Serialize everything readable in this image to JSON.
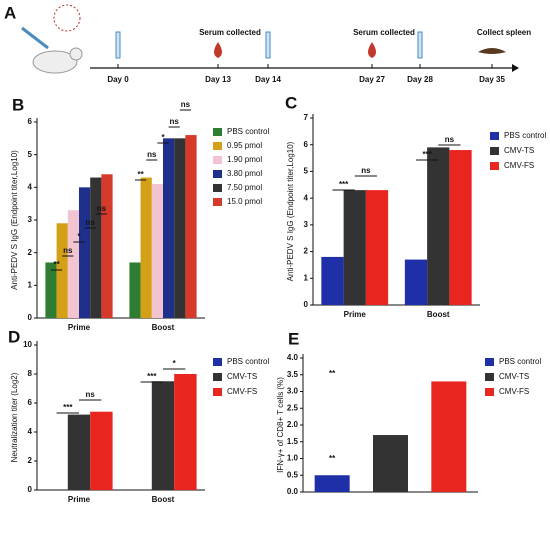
{
  "timeline": {
    "label": "A",
    "events": [
      {
        "day": "Day 0"
      },
      {
        "day": "Day 13",
        "note": "Serum collected"
      },
      {
        "day": "Day 14"
      },
      {
        "day": "Day 27",
        "note": "Serum collected"
      },
      {
        "day": "Day 28"
      },
      {
        "day": "Day 35",
        "note": "Collect spleen"
      }
    ]
  },
  "chart_data": [
    {
      "type": "bar",
      "label": "B",
      "ylabel": "Anti-PEDV S IgG (Endpoint titer,Log10)",
      "categories": [
        "Prime",
        "Boost"
      ],
      "series": [
        {
          "name": "PBS control",
          "color": "#2e7d32",
          "values": [
            1.7,
            1.7
          ]
        },
        {
          "name": "0.95 pmol",
          "color": "#d4a017",
          "values": [
            2.9,
            4.3
          ]
        },
        {
          "name": "1.90 pmol",
          "color": "#f2c4d0",
          "values": [
            3.3,
            4.1
          ]
        },
        {
          "name": "3.80 pmol",
          "color": "#1f2f8c",
          "values": [
            4.0,
            5.5
          ]
        },
        {
          "name": "7.50 pmol",
          "color": "#333333",
          "values": [
            4.3,
            5.5
          ]
        },
        {
          "name": "15.0 pmol",
          "color": "#d63a2a",
          "values": [
            4.4,
            5.6
          ]
        }
      ],
      "ylim": [
        0,
        6
      ],
      "yticks": [
        0,
        1,
        2,
        3,
        4,
        5,
        6
      ],
      "annotations": [
        "**",
        "ns",
        "*",
        "ns",
        "ns",
        "**",
        "ns",
        "*",
        "ns",
        "ns"
      ]
    },
    {
      "type": "bar",
      "label": "C",
      "ylabel": "Anti-PEDV S IgG (Endpoint titer,Log10)",
      "categories": [
        "Prime",
        "Boost"
      ],
      "series": [
        {
          "name": "PBS control",
          "color": "#1f2fa8",
          "values": [
            1.8,
            1.7
          ]
        },
        {
          "name": "CMV-TS",
          "color": "#333333",
          "values": [
            4.3,
            5.9
          ]
        },
        {
          "name": "CMV-FS",
          "color": "#e8251f",
          "values": [
            4.3,
            5.8
          ]
        }
      ],
      "ylim": [
        0,
        7
      ],
      "yticks": [
        0,
        1,
        2,
        3,
        4,
        5,
        6,
        7
      ],
      "annotations": [
        "***",
        "ns",
        "***",
        "ns"
      ]
    },
    {
      "type": "bar",
      "label": "D",
      "ylabel": "Neutralization titer (Log2)",
      "categories": [
        "Prime",
        "Boost"
      ],
      "series": [
        {
          "name": "PBS control",
          "color": "#1f2fa8",
          "values": [
            0,
            0
          ]
        },
        {
          "name": "CMV-TS",
          "color": "#333333",
          "values": [
            5.2,
            7.5
          ]
        },
        {
          "name": "CMV-FS",
          "color": "#e8251f",
          "values": [
            5.4,
            8.0
          ]
        }
      ],
      "ylim": [
        0,
        10
      ],
      "yticks": [
        0,
        2,
        4,
        6,
        8,
        10
      ],
      "annotations": [
        "***",
        "ns",
        "***",
        "*"
      ]
    },
    {
      "type": "bar",
      "label": "E",
      "ylabel": "IFN-γ+ of CD8+ T cells (%)",
      "categories": [
        null,
        null,
        null
      ],
      "values": [
        0.5,
        1.7,
        3.3
      ],
      "colors": [
        "#1f2fa8",
        "#333333",
        "#e8251f"
      ],
      "legend": [
        "PBS control",
        "CMV-TS",
        "CMV-FS"
      ],
      "ylim": [
        0,
        4
      ],
      "yticks": [
        {
          "value": 0,
          "label": "0.0"
        },
        0.5,
        {
          "value": 1,
          "label": "1.0"
        },
        1.5,
        {
          "value": 2,
          "label": "2.0"
        },
        2.5,
        {
          "value": 3,
          "label": "3.0"
        },
        3.5,
        {
          "value": 4,
          "label": "4.0"
        }
      ],
      "annotations": [
        "**",
        "**"
      ]
    }
  ]
}
